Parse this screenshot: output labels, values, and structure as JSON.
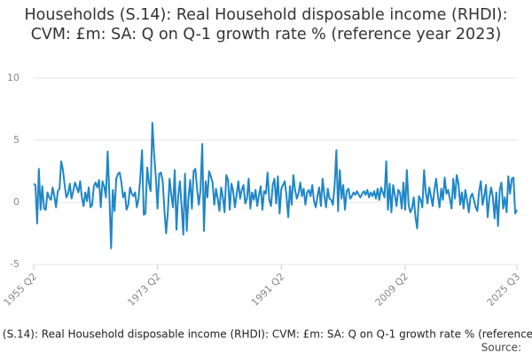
{
  "chart_data": {
    "type": "line",
    "title": "Households (S.14): Real Household disposable income (RHDI): CVM: £m: SA: Q on Q-1 growth rate % (reference year 2023)",
    "source": "Source:",
    "categories": [
      "1955 Q2",
      null,
      null,
      null,
      null,
      null,
      null,
      null,
      null,
      null,
      null,
      null,
      null,
      null,
      null,
      null,
      null,
      null,
      null,
      null,
      null,
      null,
      null,
      null,
      null,
      null,
      null,
      null,
      null,
      null,
      null,
      null,
      null,
      null,
      null,
      null,
      null,
      null,
      null,
      null,
      null,
      null,
      null,
      null,
      null,
      null,
      null,
      null,
      null,
      null,
      null,
      null,
      null,
      null,
      null,
      null,
      null,
      null,
      null,
      null,
      null,
      null,
      null,
      null,
      null,
      null,
      null,
      null,
      null,
      null,
      null,
      null,
      "1973 Q2",
      null,
      null,
      null,
      null,
      null,
      null,
      null,
      null,
      null,
      null,
      null,
      null,
      null,
      null,
      null,
      null,
      null,
      null,
      null,
      null,
      null,
      null,
      null,
      null,
      null,
      null,
      null,
      null,
      null,
      null,
      null,
      null,
      null,
      null,
      null,
      null,
      null,
      null,
      null,
      null,
      null,
      null,
      null,
      null,
      null,
      null,
      null,
      null,
      null,
      null,
      null,
      null,
      null,
      null,
      null,
      null,
      null,
      null,
      null,
      null,
      null,
      null,
      null,
      null,
      null,
      null,
      null,
      null,
      null,
      null,
      null,
      "1991 Q2",
      null,
      null,
      null,
      null,
      null,
      null,
      null,
      null,
      null,
      null,
      null,
      null,
      null,
      null,
      null,
      null,
      null,
      null,
      null,
      null,
      null,
      null,
      null,
      null,
      null,
      null,
      null,
      null,
      null,
      null,
      null,
      null,
      null,
      null,
      null,
      null,
      null,
      null,
      null,
      null,
      null,
      null,
      null,
      null,
      null,
      null,
      null,
      null,
      null,
      null,
      null,
      null,
      null,
      null,
      null,
      null,
      null,
      null,
      null,
      null,
      null,
      null,
      null,
      null,
      null,
      null,
      null,
      null,
      null,
      null,
      null,
      "2009 Q2",
      null,
      null,
      null,
      null,
      null,
      null,
      null,
      null,
      null,
      null,
      null,
      null,
      null,
      null,
      null,
      null,
      null,
      null,
      null,
      null,
      null,
      null,
      null,
      null,
      null,
      null,
      null,
      null,
      null,
      null,
      null,
      null,
      null,
      null,
      null,
      null,
      null,
      null,
      null,
      null,
      null,
      null,
      null,
      null,
      null,
      null,
      null,
      null,
      null,
      null,
      null,
      null,
      null,
      null,
      null,
      null,
      null,
      null,
      null,
      null,
      null,
      null,
      null,
      null,
      "2025 Q3"
    ],
    "series": [
      {
        "name": "Households (S.14): Real Household disposable income (RHDI): CVM: £m: SA: Q on Q-1 growth rate % (reference year 2023)",
        "color": "#1f86c8",
        "values": [
          1.5,
          1.4,
          -1.7,
          2.7,
          -0.6,
          1.3,
          -0.5,
          -0.6,
          0.8,
          0.4,
          0.2,
          1.2,
          0.5,
          -0.4,
          0.9,
          1.1,
          3.3,
          2.6,
          1.4,
          0.4,
          0.7,
          1.5,
          0.3,
          0.9,
          1.6,
          1.2,
          0.8,
          1.7,
          0.4,
          -0.3,
          0.8,
          0.1,
          1.2,
          -0.4,
          -0.2,
          1.3,
          1.6,
          1.2,
          1.8,
          -0.4,
          1.7,
          1.3,
          0.4,
          4.1,
          0.6,
          -3.7,
          1.0,
          -0.7,
          1.9,
          2.3,
          2.4,
          1.6,
          0.4,
          0.8,
          -0.6,
          -0.2,
          1.2,
          0.7,
          0.5,
          0.8,
          -0.4,
          0.3,
          2.0,
          4.2,
          -1.0,
          -0.9,
          2.8,
          1.6,
          0.9,
          6.4,
          3.9,
          2.1,
          -0.5,
          2.3,
          2.4,
          1.7,
          -0.6,
          -2.5,
          -0.8,
          1.9,
          0.6,
          -0.4,
          2.6,
          -2.2,
          0.5,
          1.7,
          -0.3,
          -2.6,
          2.3,
          -2.3,
          0.4,
          1.8,
          -0.5,
          2.5,
          2.7,
          1.1,
          -0.2,
          1.0,
          4.7,
          -2.3,
          1.7,
          0.4,
          2.5,
          2.1,
          1.6,
          -0.2,
          1.1,
          0.3,
          -0.7,
          1.2,
          0.4,
          -0.8,
          2.2,
          1.8,
          -0.6,
          1.5,
          0.9,
          -0.4,
          0.6,
          1.7,
          0.3,
          1.0,
          1.4,
          -0.1,
          0.3,
          1.9,
          -0.5,
          0.8,
          0.2,
          1.0,
          -0.3,
          0.6,
          1.3,
          -0.6,
          0.9,
          0.7,
          2.4,
          0.2,
          -0.3,
          1.4,
          1.9,
          -0.1,
          2.1,
          -0.9,
          1.1,
          1.4,
          1.7,
          0.5,
          -1.2,
          1.3,
          -0.2,
          2.2,
          1.0,
          0.3,
          0.7,
          1.6,
          0.5,
          1.1,
          -0.2,
          0.8,
          1.0,
          0.5,
          1.4,
          0.1,
          -0.4,
          0.5,
          1.2,
          -0.3,
          1.9,
          0.6,
          -0.4,
          1.1,
          0.3,
          0.2,
          -0.2,
          1.4,
          4.2,
          -0.7,
          2.6,
          0.3,
          1.4,
          -0.6,
          0.9,
          1.1,
          0.3,
          0.5,
          0.8,
          0.6,
          0.9,
          0.6,
          0.4,
          0.7,
          0.9,
          0.6,
          1.0,
          0.4,
          0.8,
          0.5,
          0.9,
          0.3,
          1.1,
          0.2,
          1.2,
          0.8,
          0.4,
          3.3,
          -0.6,
          1.5,
          -0.8,
          1.4,
          0.6,
          -0.3,
          1.0,
          0.8,
          -0.5,
          1.6,
          -0.6,
          2.6,
          -0.2,
          -0.8,
          -0.5,
          0.4,
          -1.2,
          -2.1,
          0.5,
          0.2,
          -0.4,
          2.6,
          0.8,
          -0.1,
          1.2,
          0.5,
          -0.3,
          1.0,
          1.9,
          0.6,
          -0.4,
          1.1,
          0.2,
          2.0,
          0.7,
          1.0,
          0.3,
          -0.5,
          1.9,
          0.3,
          2.2,
          1.5,
          -0.2,
          0.8,
          -0.5,
          1.0,
          0.2,
          -0.8,
          0.4,
          0.7,
          0.2,
          -0.4,
          -0.7,
          0.9,
          1.7,
          -0.2,
          0.5,
          1.4,
          -1.2,
          0.4,
          1.2,
          0.4,
          -1.3,
          0.8,
          -1.9,
          1.0,
          1.6,
          -0.5,
          0.4,
          -0.8,
          2.1,
          0.7,
          1.9,
          2.0,
          -0.9,
          -0.6
        ]
      }
    ],
    "ylim": [
      -5,
      10
    ],
    "yticks": [
      -5,
      0,
      5,
      10
    ],
    "grid": true
  }
}
